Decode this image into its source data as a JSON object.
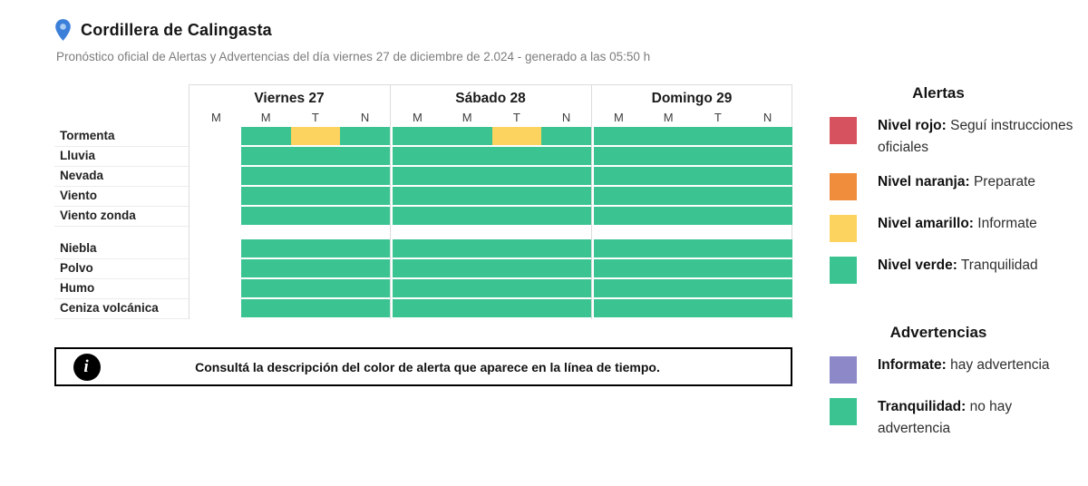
{
  "header": {
    "title": "Cordillera de Calingasta",
    "subtitle": "Pronóstico oficial de Alertas y Advertencias del día viernes 27 de diciembre de 2.024 - generado a las 05:50 h"
  },
  "colors": {
    "green": "#3bc492",
    "yellow": "#fbd35e",
    "red": "#d6525e",
    "orange": "#ef8d3d",
    "purple": "#8d88c7",
    "pin_blue": "#3c7fd9",
    "pin_blue_light": "#a9cdf2"
  },
  "timeline": {
    "days": [
      {
        "label": "Viernes 27",
        "periods": [
          "M",
          "M",
          "T",
          "N"
        ]
      },
      {
        "label": "Sábado 28",
        "periods": [
          "M",
          "M",
          "T",
          "N"
        ]
      },
      {
        "label": "Domingo 29",
        "periods": [
          "M",
          "M",
          "T",
          "N"
        ]
      }
    ],
    "groups": [
      {
        "name": "alertas",
        "rows": [
          {
            "label": "Tormenta",
            "cells": [
              [
                "empty",
                "green",
                "yellow",
                "green"
              ],
              [
                "green",
                "green",
                "yellow",
                "green"
              ],
              [
                "green",
                "green",
                "green",
                "green"
              ]
            ]
          },
          {
            "label": "Lluvia",
            "cells": [
              [
                "empty",
                "green",
                "green",
                "green"
              ],
              [
                "green",
                "green",
                "green",
                "green"
              ],
              [
                "green",
                "green",
                "green",
                "green"
              ]
            ]
          },
          {
            "label": "Nevada",
            "cells": [
              [
                "empty",
                "green",
                "green",
                "green"
              ],
              [
                "green",
                "green",
                "green",
                "green"
              ],
              [
                "green",
                "green",
                "green",
                "green"
              ]
            ]
          },
          {
            "label": "Viento",
            "cells": [
              [
                "empty",
                "green",
                "green",
                "green"
              ],
              [
                "green",
                "green",
                "green",
                "green"
              ],
              [
                "green",
                "green",
                "green",
                "green"
              ]
            ]
          },
          {
            "label": "Viento zonda",
            "cells": [
              [
                "empty",
                "green",
                "green",
                "green"
              ],
              [
                "green",
                "green",
                "green",
                "green"
              ],
              [
                "green",
                "green",
                "green",
                "green"
              ]
            ]
          }
        ]
      },
      {
        "name": "advertencias",
        "rows": [
          {
            "label": "Niebla",
            "cells": [
              [
                "empty",
                "green",
                "green",
                "green"
              ],
              [
                "green",
                "green",
                "green",
                "green"
              ],
              [
                "green",
                "green",
                "green",
                "green"
              ]
            ]
          },
          {
            "label": "Polvo",
            "cells": [
              [
                "empty",
                "green",
                "green",
                "green"
              ],
              [
                "green",
                "green",
                "green",
                "green"
              ],
              [
                "green",
                "green",
                "green",
                "green"
              ]
            ]
          },
          {
            "label": "Humo",
            "cells": [
              [
                "empty",
                "green",
                "green",
                "green"
              ],
              [
                "green",
                "green",
                "green",
                "green"
              ],
              [
                "green",
                "green",
                "green",
                "green"
              ]
            ]
          },
          {
            "label": "Ceniza volcánica",
            "cells": [
              [
                "empty",
                "green",
                "green",
                "green"
              ],
              [
                "green",
                "green",
                "green",
                "green"
              ],
              [
                "green",
                "green",
                "green",
                "green"
              ]
            ]
          }
        ]
      }
    ]
  },
  "info_box": {
    "text": "Consultá la descripción del color de alerta que aparece en la línea de tiempo."
  },
  "legend": {
    "alerts": {
      "title": "Alertas",
      "items": [
        {
          "bold": "Nivel rojo:",
          "rest": "Seguí instrucciones oficiales",
          "color": "red"
        },
        {
          "bold": "Nivel naranja:",
          "rest": "Preparate",
          "color": "orange"
        },
        {
          "bold": "Nivel amarillo:",
          "rest": "Informate",
          "color": "yellow"
        },
        {
          "bold": "Nivel verde:",
          "rest": "Tranquilidad",
          "color": "green"
        }
      ]
    },
    "warnings": {
      "title": "Advertencias",
      "items": [
        {
          "bold": "Informate:",
          "rest": "hay advertencia",
          "color": "purple"
        },
        {
          "bold": "Tranquilidad:",
          "rest": "no hay advertencia",
          "color": "green"
        }
      ]
    }
  }
}
